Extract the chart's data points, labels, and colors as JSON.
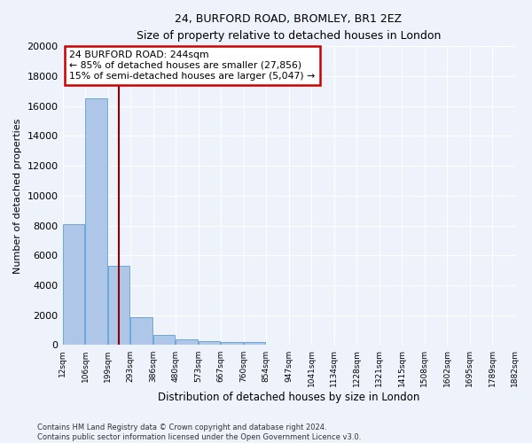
{
  "title1": "24, BURFORD ROAD, BROMLEY, BR1 2EZ",
  "title2": "Size of property relative to detached houses in London",
  "xlabel": "Distribution of detached houses by size in London",
  "ylabel": "Number of detached properties",
  "bins": [
    "12sqm",
    "106sqm",
    "199sqm",
    "293sqm",
    "386sqm",
    "480sqm",
    "573sqm",
    "667sqm",
    "760sqm",
    "854sqm",
    "947sqm",
    "1041sqm",
    "1134sqm",
    "1228sqm",
    "1321sqm",
    "1415sqm",
    "1508sqm",
    "1602sqm",
    "1695sqm",
    "1789sqm",
    "1882sqm"
  ],
  "bin_edges": [
    12,
    106,
    199,
    293,
    386,
    480,
    573,
    667,
    760,
    854,
    947,
    1041,
    1134,
    1228,
    1321,
    1415,
    1508,
    1602,
    1695,
    1789,
    1882
  ],
  "values": [
    8100,
    16500,
    5300,
    1850,
    700,
    370,
    280,
    210,
    180,
    0,
    0,
    0,
    0,
    0,
    0,
    0,
    0,
    0,
    0,
    0
  ],
  "bar_color": "#aec6e8",
  "bar_edge_color": "#5a9fd4",
  "vline_x": 244,
  "vline_color": "#8b0000",
  "annotation_text": "24 BURFORD ROAD: 244sqm\n← 85% of detached houses are smaller (27,856)\n15% of semi-detached houses are larger (5,047) →",
  "annotation_box_color": "white",
  "annotation_box_edge": "#cc0000",
  "ylim": [
    0,
    20000
  ],
  "yticks": [
    0,
    2000,
    4000,
    6000,
    8000,
    10000,
    12000,
    14000,
    16000,
    18000,
    20000
  ],
  "bg_color": "#eef2fb",
  "grid_color": "white",
  "footnote": "Contains HM Land Registry data © Crown copyright and database right 2024.\nContains public sector information licensed under the Open Government Licence v3.0."
}
